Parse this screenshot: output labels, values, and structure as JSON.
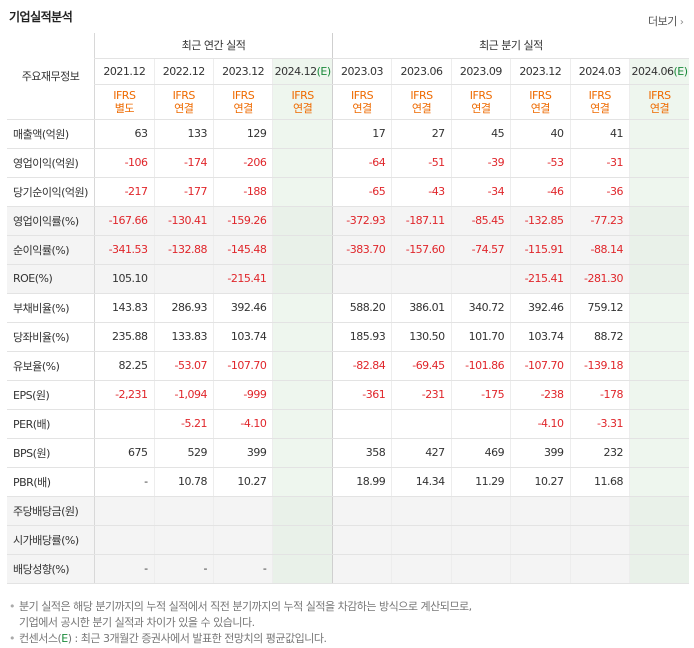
{
  "header": {
    "title": "기업실적분석",
    "more_label": "더보기"
  },
  "table": {
    "label_header": "주요재무정보",
    "group_annual": "최근 연간 실적",
    "group_quarter": "최근 분기 실적",
    "periods": [
      {
        "label": "2021.12",
        "est": "",
        "std1": "IFRS",
        "std2": "별도"
      },
      {
        "label": "2022.12",
        "est": "",
        "std1": "IFRS",
        "std2": "연결"
      },
      {
        "label": "2023.12",
        "est": "",
        "std1": "IFRS",
        "std2": "연결"
      },
      {
        "label": "2024.12",
        "est": "(E)",
        "std1": "IFRS",
        "std2": "연결"
      },
      {
        "label": "2023.03",
        "est": "",
        "std1": "IFRS",
        "std2": "연결"
      },
      {
        "label": "2023.06",
        "est": "",
        "std1": "IFRS",
        "std2": "연결"
      },
      {
        "label": "2023.09",
        "est": "",
        "std1": "IFRS",
        "std2": "연결"
      },
      {
        "label": "2023.12",
        "est": "",
        "std1": "IFRS",
        "std2": "연결"
      },
      {
        "label": "2024.03",
        "est": "",
        "std1": "IFRS",
        "std2": "연결"
      },
      {
        "label": "2024.06",
        "est": "(E)",
        "std1": "IFRS",
        "std2": "연결"
      }
    ],
    "rows": [
      {
        "label": "매출액(억원)",
        "values": [
          "63",
          "133",
          "129",
          "",
          "17",
          "27",
          "45",
          "40",
          "41",
          ""
        ]
      },
      {
        "label": "영업이익(억원)",
        "values": [
          "-106",
          "-174",
          "-206",
          "",
          "-64",
          "-51",
          "-39",
          "-53",
          "-31",
          ""
        ]
      },
      {
        "label": "당기순이익(억원)",
        "values": [
          "-217",
          "-177",
          "-188",
          "",
          "-65",
          "-43",
          "-34",
          "-46",
          "-36",
          ""
        ]
      },
      {
        "label": "영업이익률(%)",
        "values": [
          "-167.66",
          "-130.41",
          "-159.26",
          "",
          "-372.93",
          "-187.11",
          "-85.45",
          "-132.85",
          "-77.23",
          ""
        ]
      },
      {
        "label": "순이익률(%)",
        "values": [
          "-341.53",
          "-132.88",
          "-145.48",
          "",
          "-383.70",
          "-157.60",
          "-74.57",
          "-115.91",
          "-88.14",
          ""
        ]
      },
      {
        "label": "ROE(%)",
        "values": [
          "105.10",
          "",
          "-215.41",
          "",
          "",
          "",
          "",
          "-215.41",
          "-281.30",
          ""
        ]
      },
      {
        "label": "부채비율(%)",
        "values": [
          "143.83",
          "286.93",
          "392.46",
          "",
          "588.20",
          "386.01",
          "340.72",
          "392.46",
          "759.12",
          ""
        ]
      },
      {
        "label": "당좌비율(%)",
        "values": [
          "235.88",
          "133.83",
          "103.74",
          "",
          "185.93",
          "130.50",
          "101.70",
          "103.74",
          "88.72",
          ""
        ]
      },
      {
        "label": "유보율(%)",
        "values": [
          "82.25",
          "-53.07",
          "-107.70",
          "",
          "-82.84",
          "-69.45",
          "-101.86",
          "-107.70",
          "-139.18",
          ""
        ]
      },
      {
        "label": "EPS(원)",
        "values": [
          "-2,231",
          "-1,094",
          "-999",
          "",
          "-361",
          "-231",
          "-175",
          "-238",
          "-178",
          ""
        ]
      },
      {
        "label": "PER(배)",
        "values": [
          "",
          "-5.21",
          "-4.10",
          "",
          "",
          "",
          "",
          "-4.10",
          "-3.31",
          ""
        ]
      },
      {
        "label": "BPS(원)",
        "values": [
          "675",
          "529",
          "399",
          "",
          "358",
          "427",
          "469",
          "399",
          "232",
          ""
        ]
      },
      {
        "label": "PBR(배)",
        "values": [
          "-",
          "10.78",
          "10.27",
          "",
          "18.99",
          "14.34",
          "11.29",
          "10.27",
          "11.68",
          ""
        ]
      },
      {
        "label": "주당배당금(원)",
        "values": [
          "",
          "",
          "",
          "",
          "",
          "",
          "",
          "",
          "",
          ""
        ]
      },
      {
        "label": "시가배당률(%)",
        "values": [
          "",
          "",
          "",
          "",
          "",
          "",
          "",
          "",
          "",
          ""
        ]
      },
      {
        "label": "배당성향(%)",
        "values": [
          "-",
          "-",
          "-",
          "",
          "",
          "",
          "",
          "",
          "",
          ""
        ]
      }
    ]
  },
  "notes": {
    "line1": "분기 실적은 해당 분기까지의 누적 실적에서 직전 분기까지의 누적 실적을 차감하는 방식으로 계산되므로,",
    "line2": "기업에서 공시한 분기 실적과 차이가 있을 수 있습니다.",
    "line3_prefix": "컨센서스(",
    "line3_mark": "E",
    "line3_suffix": ") : 최근 3개월간 증권사에서 발표한 전망치의 평균값입니다."
  },
  "colors": {
    "negative": "#e0262b",
    "ifrs": "#ee6a00",
    "estimate": "#1a8a3a",
    "estimate_bg": "#eef6ee"
  }
}
